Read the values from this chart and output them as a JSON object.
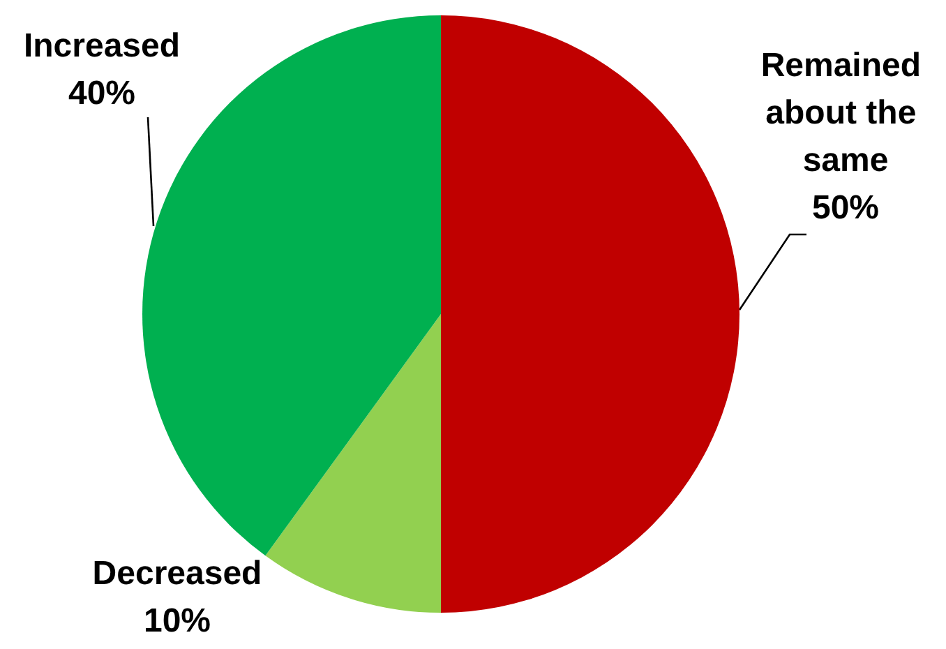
{
  "chart_data": {
    "type": "pie",
    "categories": [
      "Remained about the same",
      "Decreased",
      "Increased"
    ],
    "values": [
      50,
      10,
      40
    ],
    "colors": [
      "#c00000",
      "#92d050",
      "#00b050"
    ],
    "value_labels": [
      "50%",
      "10%",
      "40%"
    ]
  }
}
